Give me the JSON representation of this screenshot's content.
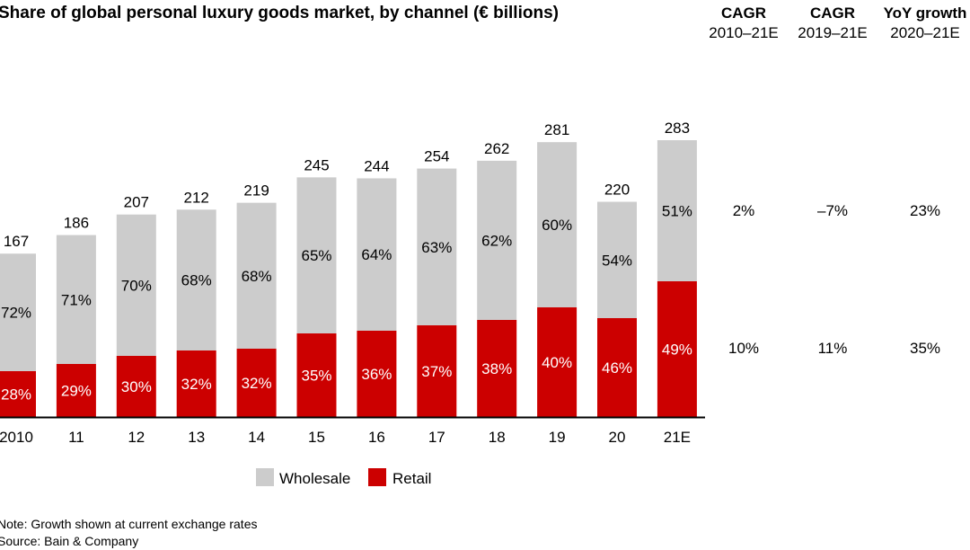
{
  "chart_data": {
    "type": "bar",
    "stacked": true,
    "title": "Share of global personal luxury goods market, by channel (€ billions)",
    "categories": [
      "2010",
      "11",
      "12",
      "13",
      "14",
      "15",
      "16",
      "17",
      "18",
      "19",
      "20",
      "21E"
    ],
    "totals": [
      167,
      186,
      207,
      212,
      219,
      245,
      244,
      254,
      262,
      281,
      220,
      283
    ],
    "series": [
      {
        "name": "Retail",
        "color": "#cc0000",
        "label_color": "#ffffff",
        "share_percent": [
          28,
          29,
          30,
          32,
          32,
          35,
          36,
          37,
          38,
          40,
          46,
          49
        ]
      },
      {
        "name": "Wholesale",
        "color": "#cccccc",
        "label_color": "#000000",
        "share_percent": [
          72,
          71,
          70,
          68,
          68,
          65,
          64,
          63,
          62,
          60,
          54,
          51
        ]
      }
    ],
    "ylim": [
      0,
      283
    ],
    "grid": false,
    "legend": {
      "placement": "bottom",
      "items": [
        "Wholesale",
        "Retail"
      ]
    },
    "growth_table": {
      "columns": [
        {
          "title": "CAGR",
          "subtitle": "2010–21E"
        },
        {
          "title": "CAGR",
          "subtitle": "2019–21E"
        },
        {
          "title": "YoY growth",
          "subtitle": "2020–21E"
        }
      ],
      "rows": [
        {
          "series": "Wholesale",
          "values": [
            "2%",
            "–7%",
            "23%"
          ]
        },
        {
          "series": "Retail",
          "values": [
            "10%",
            "11%",
            "35%"
          ]
        }
      ]
    }
  },
  "footer": {
    "note": "Note: Growth shown at current exchange rates",
    "source": "Source: Bain & Company"
  }
}
